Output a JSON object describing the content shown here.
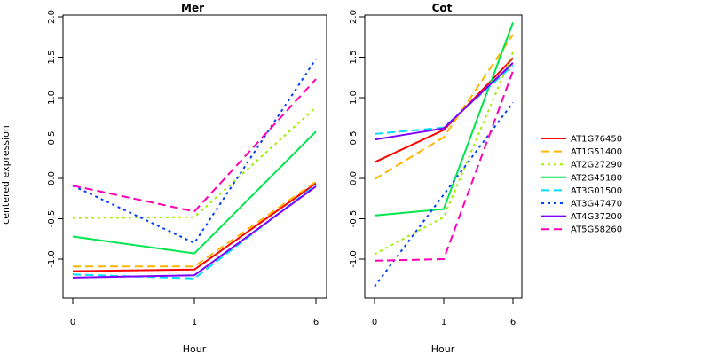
{
  "chart_data": {
    "type": "line",
    "ylabel": "centered expression",
    "ylim": [
      -1.45,
      2.1
    ],
    "yticks": [
      "-1.0",
      "-0.5",
      "0.0",
      "0.5",
      "1.0",
      "1.5",
      "2.0"
    ],
    "x": [
      "0",
      "1",
      "6"
    ],
    "legend_position": "right",
    "series_style": [
      {
        "name": "AT1G76450",
        "color": "#ff0000",
        "dash": ""
      },
      {
        "name": "AT1G51400",
        "color": "#ffb400",
        "dash": "9,5"
      },
      {
        "name": "AT2G27290",
        "color": "#a0ee00",
        "dash": "3,4"
      },
      {
        "name": "AT2G45180",
        "color": "#00e64c",
        "dash": ""
      },
      {
        "name": "AT3G01500",
        "color": "#00dcff",
        "dash": "9,5"
      },
      {
        "name": "AT3G47470",
        "color": "#0040ff",
        "dash": "3,4"
      },
      {
        "name": "AT4G37200",
        "color": "#8000ff",
        "dash": ""
      },
      {
        "name": "AT5G58260",
        "color": "#ff00b4",
        "dash": "9,5"
      }
    ],
    "panels": [
      {
        "title": "Mer",
        "xlabel": "Hour",
        "series": [
          {
            "name": "AT1G76450",
            "values": [
              -1.15,
              -1.13,
              -0.06
            ]
          },
          {
            "name": "AT1G51400",
            "values": [
              -1.09,
              -1.09,
              -0.04
            ]
          },
          {
            "name": "AT2G27290",
            "values": [
              -0.49,
              -0.48,
              0.88
            ]
          },
          {
            "name": "AT2G45180",
            "values": [
              -0.72,
              -0.93,
              0.58
            ]
          },
          {
            "name": "AT3G01500",
            "values": [
              -1.19,
              -1.24,
              -0.08
            ]
          },
          {
            "name": "AT3G47470",
            "values": [
              -0.09,
              -0.8,
              1.48
            ]
          },
          {
            "name": "AT4G37200",
            "values": [
              -1.23,
              -1.2,
              -0.1
            ]
          },
          {
            "name": "AT5G58260",
            "values": [
              -0.09,
              -0.41,
              1.23
            ]
          }
        ]
      },
      {
        "title": "Cot",
        "xlabel": "Hour",
        "series": [
          {
            "name": "AT1G76450",
            "values": [
              0.2,
              0.6,
              1.49
            ]
          },
          {
            "name": "AT1G51400",
            "values": [
              -0.01,
              0.51,
              1.78
            ]
          },
          {
            "name": "AT2G27290",
            "values": [
              -0.94,
              -0.48,
              1.56
            ]
          },
          {
            "name": "AT2G45180",
            "values": [
              -0.46,
              -0.38,
              1.93
            ]
          },
          {
            "name": "AT3G01500",
            "values": [
              0.55,
              0.63,
              1.4
            ]
          },
          {
            "name": "AT3G47470",
            "values": [
              -1.34,
              -0.2,
              0.94
            ]
          },
          {
            "name": "AT4G37200",
            "values": [
              0.48,
              0.62,
              1.43
            ]
          },
          {
            "name": "AT5G58260",
            "values": [
              -1.02,
              -1.0,
              1.33
            ]
          }
        ]
      }
    ]
  }
}
